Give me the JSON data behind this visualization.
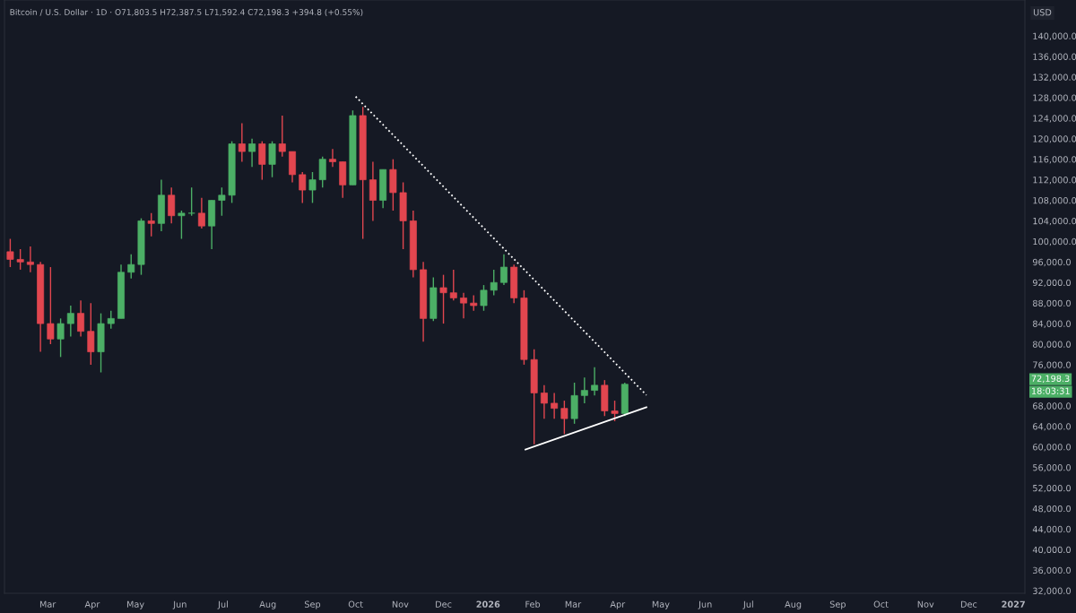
{
  "chart_data": {
    "type": "candlestick",
    "title": "Bitcoin / U.S. Dollar · 1D · O71,803.5 H72,387.5 L71,592.4 C72,198.3 +394.8 (+0.55%)",
    "x": [
      "2025-02-03",
      "2025-02-10",
      "2025-02-17",
      "2025-02-24",
      "2025-03-03",
      "2025-03-10",
      "2025-03-17",
      "2025-03-24",
      "2025-03-31",
      "2025-04-07",
      "2025-04-14",
      "2025-04-21",
      "2025-04-28",
      "2025-05-05",
      "2025-05-12",
      "2025-05-19",
      "2025-05-26",
      "2025-06-02",
      "2025-06-09",
      "2025-06-16",
      "2025-06-23",
      "2025-06-30",
      "2025-07-07",
      "2025-07-14",
      "2025-07-21",
      "2025-07-28",
      "2025-08-04",
      "2025-08-11",
      "2025-08-18",
      "2025-08-25",
      "2025-09-01",
      "2025-09-08",
      "2025-09-15",
      "2025-09-22",
      "2025-09-29",
      "2025-10-06",
      "2025-10-13",
      "2025-10-20",
      "2025-10-27",
      "2025-11-03",
      "2025-11-10",
      "2025-11-17",
      "2025-11-24",
      "2025-12-01",
      "2025-12-08",
      "2025-12-15",
      "2025-12-22",
      "2025-12-29",
      "2026-01-05",
      "2026-01-12",
      "2026-01-19",
      "2026-01-26",
      "2026-02-02",
      "2026-02-09",
      "2026-02-16",
      "2026-02-23",
      "2026-03-02",
      "2026-03-09",
      "2026-03-16",
      "2026-03-23",
      "2026-03-30",
      "2026-04-06"
    ],
    "ohlc": [
      [
        98000,
        100500,
        95000,
        96500
      ],
      [
        96500,
        98500,
        94500,
        96000
      ],
      [
        96000,
        99000,
        94000,
        95500
      ],
      [
        95500,
        96000,
        78500,
        84000
      ],
      [
        84000,
        95000,
        80000,
        81000
      ],
      [
        81000,
        85000,
        77500,
        84000
      ],
      [
        84000,
        87500,
        81500,
        86000
      ],
      [
        86000,
        88500,
        81500,
        82500
      ],
      [
        82500,
        88000,
        76000,
        78500
      ],
      [
        78500,
        86000,
        74500,
        84000
      ],
      [
        84000,
        86500,
        83000,
        85000
      ],
      [
        85000,
        95500,
        85000,
        94000
      ],
      [
        94000,
        97500,
        92800,
        95500
      ],
      [
        95500,
        104500,
        93500,
        104000
      ],
      [
        104000,
        105500,
        101000,
        103500
      ],
      [
        103500,
        112000,
        102000,
        109000
      ],
      [
        109000,
        110500,
        103500,
        105000
      ],
      [
        105000,
        106000,
        100500,
        105500
      ],
      [
        105500,
        110500,
        105000,
        105500
      ],
      [
        105500,
        108500,
        102500,
        103000
      ],
      [
        103000,
        108000,
        98500,
        108000
      ],
      [
        108000,
        110500,
        105000,
        109000
      ],
      [
        109000,
        119500,
        107500,
        119000
      ],
      [
        119000,
        123000,
        115500,
        117500
      ],
      [
        117500,
        120000,
        114500,
        119000
      ],
      [
        119000,
        119500,
        112000,
        115000
      ],
      [
        115000,
        119500,
        112500,
        119000
      ],
      [
        119000,
        124500,
        116500,
        117500
      ],
      [
        117500,
        117500,
        111500,
        113000
      ],
      [
        113000,
        113500,
        107500,
        110000
      ],
      [
        110000,
        113500,
        107500,
        112000
      ],
      [
        112000,
        116500,
        110500,
        116000
      ],
      [
        116000,
        118000,
        114500,
        115500
      ],
      [
        115500,
        115500,
        108500,
        111000
      ],
      [
        111000,
        125500,
        111000,
        124500
      ],
      [
        124500,
        126200,
        100500,
        112000
      ],
      [
        112000,
        115500,
        104000,
        108000
      ],
      [
        108000,
        114000,
        106500,
        114000
      ],
      [
        114000,
        116000,
        106000,
        109500
      ],
      [
        109500,
        111500,
        98500,
        104000
      ],
      [
        104000,
        106000,
        93000,
        94500
      ],
      [
        94500,
        96000,
        80500,
        85000
      ],
      [
        85000,
        93000,
        84500,
        91000
      ],
      [
        91000,
        93500,
        84000,
        90000
      ],
      [
        90000,
        94500,
        88500,
        89000
      ],
      [
        89000,
        90000,
        85000,
        88000
      ],
      [
        88000,
        89500,
        86500,
        87500
      ],
      [
        87500,
        91500,
        86500,
        90500
      ],
      [
        90500,
        94500,
        89500,
        92000
      ],
      [
        92000,
        97500,
        91500,
        95000
      ],
      [
        95000,
        95500,
        88000,
        89000
      ],
      [
        89000,
        90500,
        76000,
        77000
      ],
      [
        77000,
        79000,
        60500,
        70500
      ],
      [
        70500,
        72000,
        65500,
        68500
      ],
      [
        68500,
        70500,
        65500,
        67500
      ],
      [
        67500,
        69000,
        62500,
        65500
      ],
      [
        65500,
        72500,
        64500,
        70000
      ],
      [
        70000,
        73500,
        68500,
        71000
      ],
      [
        71000,
        75500,
        70000,
        72000
      ],
      [
        72000,
        73000,
        66000,
        67000
      ],
      [
        67000,
        69000,
        65000,
        66500
      ],
      [
        66500,
        72500,
        66000,
        72198.3
      ]
    ],
    "colors": [
      "#e2464f",
      "#e2464f",
      "#e2464f",
      "#e2464f",
      "#e2464f",
      "#4caf66",
      "#4caf66",
      "#e2464f",
      "#e2464f",
      "#4caf66",
      "#4caf66",
      "#4caf66",
      "#4caf66",
      "#4caf66",
      "#e2464f",
      "#4caf66",
      "#e2464f",
      "#4caf66",
      "#4caf66",
      "#e2464f",
      "#4caf66",
      "#4caf66",
      "#4caf66",
      "#e2464f",
      "#4caf66",
      "#e2464f",
      "#4caf66",
      "#e2464f",
      "#e2464f",
      "#e2464f",
      "#4caf66",
      "#4caf66",
      "#e2464f",
      "#e2464f",
      "#4caf66",
      "#e2464f",
      "#e2464f",
      "#4caf66",
      "#e2464f",
      "#e2464f",
      "#e2464f",
      "#e2464f",
      "#4caf66",
      "#e2464f",
      "#e2464f",
      "#e2464f",
      "#e2464f",
      "#4caf66",
      "#4caf66",
      "#4caf66",
      "#e2464f",
      "#e2464f",
      "#e2464f",
      "#e2464f",
      "#e2464f",
      "#e2464f",
      "#4caf66",
      "#4caf66",
      "#4caf66",
      "#e2464f",
      "#e2464f",
      "#4caf66"
    ],
    "series": [
      {
        "type": "line",
        "x": [
          "2025-10-01",
          "2026-04-21"
        ],
        "values": [
          128200,
          70100
        ],
        "color": "#ffffff",
        "line_style": "dotted"
      },
      {
        "type": "line",
        "x": [
          "2026-01-27",
          "2026-04-21"
        ],
        "values": [
          59500,
          67700
        ],
        "color": "#ffffff",
        "line_style": "solid"
      }
    ],
    "annotations": [
      "USD",
      "72,198.3",
      "18:03:31"
    ],
    "xlim": [
      "2025-01-30",
      "2027-01-09"
    ],
    "xticks": [
      {
        "value": "2025-03-01",
        "label": "Mar"
      },
      {
        "value": "2025-04-01",
        "label": "Apr"
      },
      {
        "value": "2025-05-01",
        "label": "May"
      },
      {
        "value": "2025-06-01",
        "label": "Jun"
      },
      {
        "value": "2025-07-01",
        "label": "Jul"
      },
      {
        "value": "2025-08-01",
        "label": "Aug"
      },
      {
        "value": "2025-09-01",
        "label": "Sep"
      },
      {
        "value": "2025-10-01",
        "label": "Oct"
      },
      {
        "value": "2025-11-01",
        "label": "Nov"
      },
      {
        "value": "2025-12-01",
        "label": "Dec"
      },
      {
        "value": "2026-01-01",
        "label": "2026"
      },
      {
        "value": "2026-02-01",
        "label": "Feb"
      },
      {
        "value": "2026-03-01",
        "label": "Mar"
      },
      {
        "value": "2026-04-01",
        "label": "Apr"
      },
      {
        "value": "2026-05-01",
        "label": "May"
      },
      {
        "value": "2026-06-01",
        "label": "Jun"
      },
      {
        "value": "2026-07-01",
        "label": "Jul"
      },
      {
        "value": "2026-08-01",
        "label": "Aug"
      },
      {
        "value": "2026-09-01",
        "label": "Sep"
      },
      {
        "value": "2026-10-01",
        "label": "Oct"
      },
      {
        "value": "2026-11-01",
        "label": "Nov"
      },
      {
        "value": "2026-12-01",
        "label": "Dec"
      },
      {
        "value": "2027-01-01",
        "label": "2027"
      }
    ],
    "ylim": [
      31500,
      147000
    ],
    "yticks": [
      {
        "value": 32000,
        "label": "32,000.0"
      },
      {
        "value": 36000,
        "label": "36,000.0"
      },
      {
        "value": 40000,
        "label": "40,000.0"
      },
      {
        "value": 44000,
        "label": "44,000.0"
      },
      {
        "value": 48000,
        "label": "48,000.0"
      },
      {
        "value": 52000,
        "label": "52,000.0"
      },
      {
        "value": 56000,
        "label": "56,000.0"
      },
      {
        "value": 60000,
        "label": "60,000.0"
      },
      {
        "value": 64000,
        "label": "64,000.0"
      },
      {
        "value": 68000,
        "label": "68,000.0"
      },
      {
        "value": 76000,
        "label": "76,000.0"
      },
      {
        "value": 80000,
        "label": "80,000.0"
      },
      {
        "value": 84000,
        "label": "84,000.0"
      },
      {
        "value": 88000,
        "label": "88,000.0"
      },
      {
        "value": 92000,
        "label": "92,000.0"
      },
      {
        "value": 96000,
        "label": "96,000.0"
      },
      {
        "value": 100000,
        "label": "100,000.0"
      },
      {
        "value": 104000,
        "label": "104,000.0"
      },
      {
        "value": 108000,
        "label": "108,000.0"
      },
      {
        "value": 112000,
        "label": "112,000.0"
      },
      {
        "value": 116000,
        "label": "116,000.0"
      },
      {
        "value": 120000,
        "label": "120,000.0"
      },
      {
        "value": 124000,
        "label": "124,000.0"
      },
      {
        "value": 128000,
        "label": "128,000.0"
      },
      {
        "value": 132000,
        "label": "132,000.0"
      },
      {
        "value": 136000,
        "label": "136,000.0"
      },
      {
        "value": 140000,
        "label": "140,000.0"
      }
    ],
    "grid": false,
    "legend": false
  }
}
